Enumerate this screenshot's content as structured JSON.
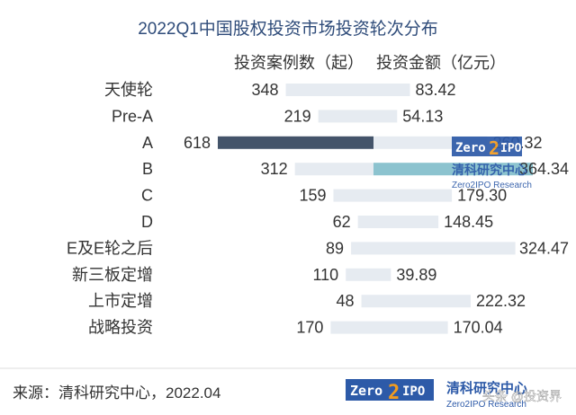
{
  "chart_data": {
    "type": "bar",
    "title": "2022Q1中国股权投资市场投资轮次分布",
    "categories": [
      "天使轮",
      "Pre-A",
      "A",
      "B",
      "C",
      "D",
      "E及E轮之后",
      "新三板定增",
      "上市定增",
      "战略投资"
    ],
    "series": [
      {
        "name": "投资案例数（起）",
        "values": [
          348,
          219,
          618,
          312,
          159,
          62,
          89,
          110,
          48,
          170
        ]
      },
      {
        "name": "投资金额（亿元）",
        "values": [
          83.42,
          54.13,
          260.32,
          364.34,
          179.3,
          148.45,
          324.47,
          39.89,
          222.32,
          170.04
        ]
      }
    ],
    "value_labels": {
      "count": [
        "348",
        "219",
        "618",
        "312",
        "159",
        "62",
        "89",
        "110",
        "48",
        "170"
      ],
      "amount": [
        "83.42",
        "54.13",
        "260.32",
        "364.34",
        "179.30",
        "148.45",
        "324.47",
        "39.89",
        "222.32",
        "170.04"
      ]
    },
    "highlight": {
      "count_index": 2,
      "amount_index": 3
    },
    "colors": {
      "bar": "#e6ebf1",
      "highlight_count": "#44546a",
      "highlight_amount": "#8cc3cf",
      "title": "#2f4c7a"
    }
  },
  "source": "来源：清科研究中心，2022.04",
  "logo": {
    "left": "Zero",
    "num": "2",
    "right": "IPO",
    "cn": "清科研究中心",
    "en": "Zero2IPO Research"
  },
  "watermark": "头条 @投资界"
}
